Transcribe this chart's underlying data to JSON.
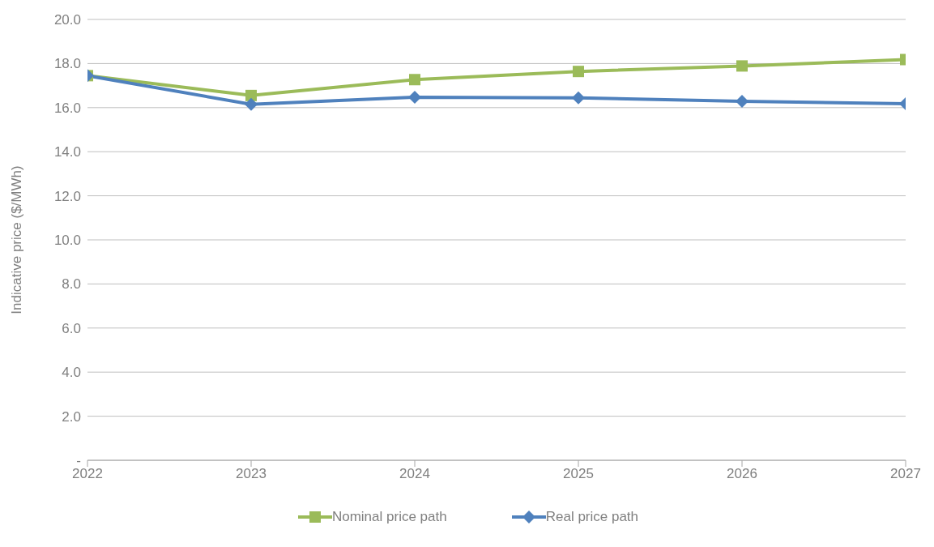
{
  "chart_data": {
    "type": "line",
    "ylabel": "Indicative price ($/MWh)",
    "categories": [
      "2022",
      "2023",
      "2024",
      "2025",
      "2026",
      "2027"
    ],
    "series": [
      {
        "name": "Nominal price path",
        "color": "#9bbb59",
        "marker": "square",
        "values": [
          17.45,
          16.55,
          17.27,
          17.64,
          17.89,
          18.18
        ]
      },
      {
        "name": "Real price path",
        "color": "#4f81bd",
        "marker": "diamond",
        "values": [
          17.45,
          16.15,
          16.47,
          16.44,
          16.29,
          16.18
        ]
      }
    ],
    "ylim": [
      0,
      20
    ],
    "yticks": [
      {
        "value": 0,
        "label": "-"
      },
      {
        "value": 2,
        "label": "2.0"
      },
      {
        "value": 4,
        "label": "4.0"
      },
      {
        "value": 6,
        "label": "6.0"
      },
      {
        "value": 8,
        "label": "8.0"
      },
      {
        "value": 10,
        "label": "10.0"
      },
      {
        "value": 12,
        "label": "12.0"
      },
      {
        "value": 14,
        "label": "14.0"
      },
      {
        "value": 16,
        "label": "16.0"
      },
      {
        "value": 18,
        "label": "18.0"
      },
      {
        "value": 20,
        "label": "20.0"
      }
    ],
    "grid": "y",
    "legend": "bottom",
    "line_style": "solid"
  }
}
